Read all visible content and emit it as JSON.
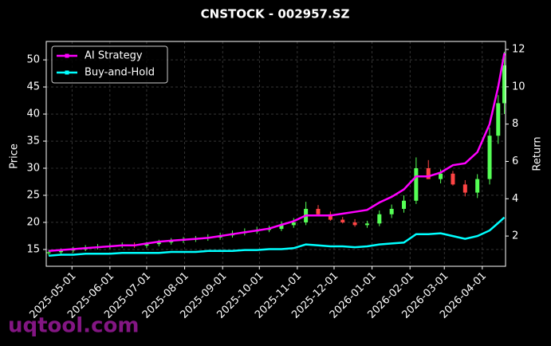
{
  "chart_data": {
    "type": "candlestick",
    "title": "CNSTOCK - 002957.SZ",
    "ylabel": "Price",
    "y2label": "Return",
    "watermark": "uqtool.com",
    "x": [
      "2025-04-12",
      "2025-04-22",
      "2025-05-02",
      "2025-05-12",
      "2025-05-22",
      "2025-06-01",
      "2025-06-11",
      "2025-06-21",
      "2025-07-01",
      "2025-07-11",
      "2025-07-21",
      "2025-07-31",
      "2025-08-10",
      "2025-08-20",
      "2025-08-30",
      "2025-09-09",
      "2025-09-19",
      "2025-09-29",
      "2025-10-09",
      "2025-10-19",
      "2025-10-29",
      "2025-11-08",
      "2025-11-18",
      "2025-11-28",
      "2025-12-08",
      "2025-12-18",
      "2025-12-28",
      "2026-01-07",
      "2026-01-17",
      "2026-01-27",
      "2026-02-06",
      "2026-02-16",
      "2026-02-26",
      "2026-03-08",
      "2026-03-18",
      "2026-03-28",
      "2026-04-07",
      "2026-04-14",
      "2026-04-19"
    ],
    "candles": {
      "open": [
        14.3,
        14.5,
        14.8,
        15.0,
        15.3,
        15.5,
        15.6,
        15.8,
        15.7,
        16.0,
        16.3,
        16.6,
        16.8,
        17.0,
        17.2,
        17.6,
        18.0,
        18.3,
        18.6,
        18.8,
        19.5,
        20.0,
        22.5,
        21.5,
        20.5,
        20.0,
        19.5,
        19.8,
        21.5,
        22.5,
        24.0,
        30.0,
        28.0,
        29.0,
        27.0,
        25.5,
        28.0,
        36.0,
        42.0
      ],
      "high": [
        14.9,
        15.2,
        15.5,
        15.8,
        16.0,
        16.1,
        16.3,
        16.3,
        16.4,
        16.8,
        17.1,
        17.3,
        17.5,
        17.8,
        18.1,
        18.5,
        18.9,
        19.2,
        19.4,
        20.2,
        20.8,
        23.8,
        23.2,
        22.0,
        21.0,
        20.6,
        20.3,
        22.2,
        23.3,
        25.0,
        32.0,
        31.5,
        29.8,
        29.5,
        27.8,
        28.9,
        37.5,
        43.5,
        51.5
      ],
      "low": [
        13.9,
        14.1,
        14.4,
        14.7,
        15.0,
        15.1,
        15.3,
        15.3,
        15.3,
        15.6,
        15.9,
        16.2,
        16.4,
        16.6,
        16.8,
        17.2,
        17.6,
        17.9,
        18.2,
        18.4,
        19.0,
        19.5,
        21.3,
        20.3,
        19.8,
        19.2,
        19.0,
        19.3,
        20.8,
        21.8,
        23.4,
        28.5,
        27.2,
        26.8,
        24.8,
        24.5,
        27.0,
        34.5,
        40.0
      ],
      "close": [
        14.5,
        14.8,
        15.0,
        15.3,
        15.5,
        15.6,
        15.8,
        15.7,
        16.0,
        16.3,
        16.6,
        16.8,
        17.0,
        17.2,
        17.6,
        18.0,
        18.3,
        18.6,
        18.8,
        19.5,
        20.0,
        22.5,
        21.5,
        20.5,
        20.0,
        19.5,
        19.8,
        21.5,
        22.5,
        24.0,
        30.0,
        28.0,
        29.0,
        27.0,
        25.5,
        28.0,
        36.0,
        42.0,
        49.0
      ],
      "up_color": "#55ff55",
      "down_color": "#ff4444"
    },
    "series": [
      {
        "name": "AI Strategy",
        "color": "#ff00ff",
        "axis": "y2",
        "values": [
          1.2,
          1.25,
          1.3,
          1.35,
          1.4,
          1.45,
          1.5,
          1.5,
          1.6,
          1.7,
          1.75,
          1.8,
          1.85,
          1.9,
          2.0,
          2.1,
          2.2,
          2.3,
          2.4,
          2.6,
          2.8,
          3.1,
          3.1,
          3.1,
          3.2,
          3.3,
          3.4,
          3.8,
          4.1,
          4.5,
          5.2,
          5.2,
          5.4,
          5.8,
          5.9,
          6.5,
          8.0,
          10.0,
          11.8
        ]
      },
      {
        "name": "Buy-and-Hold",
        "color": "#00ffff",
        "axis": "y2",
        "values": [
          0.95,
          1.0,
          1.0,
          1.05,
          1.05,
          1.05,
          1.1,
          1.1,
          1.1,
          1.1,
          1.15,
          1.15,
          1.15,
          1.2,
          1.2,
          1.2,
          1.25,
          1.25,
          1.3,
          1.3,
          1.35,
          1.55,
          1.5,
          1.45,
          1.45,
          1.4,
          1.45,
          1.55,
          1.6,
          1.65,
          2.1,
          2.1,
          2.15,
          2.0,
          1.85,
          2.0,
          2.3,
          2.7,
          3.0
        ]
      }
    ],
    "xlim": [
      "2025-04-10",
      "2026-04-20"
    ],
    "xticks": [
      "2025-05-01",
      "2025-06-01",
      "2025-07-01",
      "2025-08-01",
      "2025-09-01",
      "2025-10-01",
      "2025-11-01",
      "2025-12-01",
      "2026-01-01",
      "2026-02-01",
      "2026-03-01",
      "2026-04-01"
    ],
    "ylim": [
      11.9,
      53.4
    ],
    "yticks": [
      15,
      20,
      25,
      30,
      35,
      40,
      45,
      50
    ],
    "y2lim": [
      0.38,
      12.43
    ],
    "y2ticks": [
      2,
      4,
      6,
      8,
      10,
      12
    ],
    "grid": true,
    "legend": "upper left"
  }
}
